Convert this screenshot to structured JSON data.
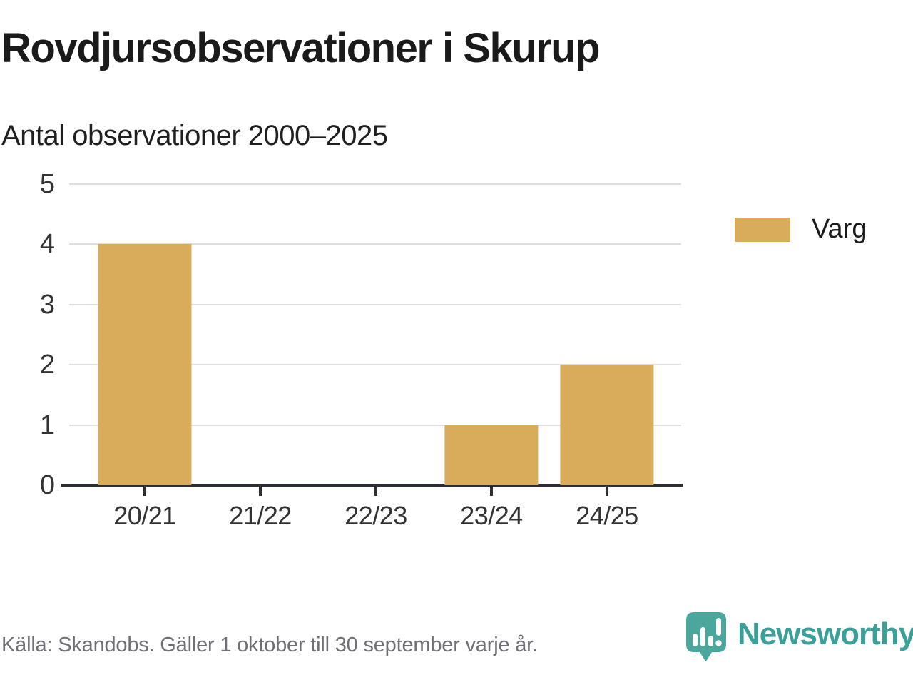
{
  "header": {
    "title": "Rovdjursobservationer i Skurup",
    "subtitle": "Antal observationer 2000–2025"
  },
  "chart_data": {
    "type": "bar",
    "title": "Rovdjursobservationer i Skurup",
    "subtitle": "Antal observationer 2000–2025",
    "categories": [
      "20/21",
      "21/22",
      "22/23",
      "23/24",
      "24/25"
    ],
    "series": [
      {
        "name": "Varg",
        "values": [
          4,
          0,
          0,
          1,
          2
        ],
        "color": "#D9AC5C"
      }
    ],
    "xlabel": "",
    "ylabel": "",
    "ylim": [
      0,
      5
    ],
    "yticks": [
      0,
      1,
      2,
      3,
      4,
      5
    ],
    "grid": "horizontal",
    "legend_position": "right"
  },
  "legend": {
    "label": "Varg",
    "swatch_color": "#D9AC5C"
  },
  "footer": {
    "source": "Källa: Skandobs. Gäller 1 oktober till 30 september varje år.",
    "brand": "Newsworthy",
    "logo_icon": "speech-bubble-bar-chart-icon"
  },
  "colors": {
    "bar": "#D9AC5C",
    "grid": "#DEDEDE",
    "axis": "#2E2E33",
    "title_text": "#1A1A1A",
    "subtitle_text": "#1F1F1F",
    "muted_text": "#6F6F78",
    "teal_logo": "#4BA79C",
    "teal_text": "#3BA198"
  }
}
